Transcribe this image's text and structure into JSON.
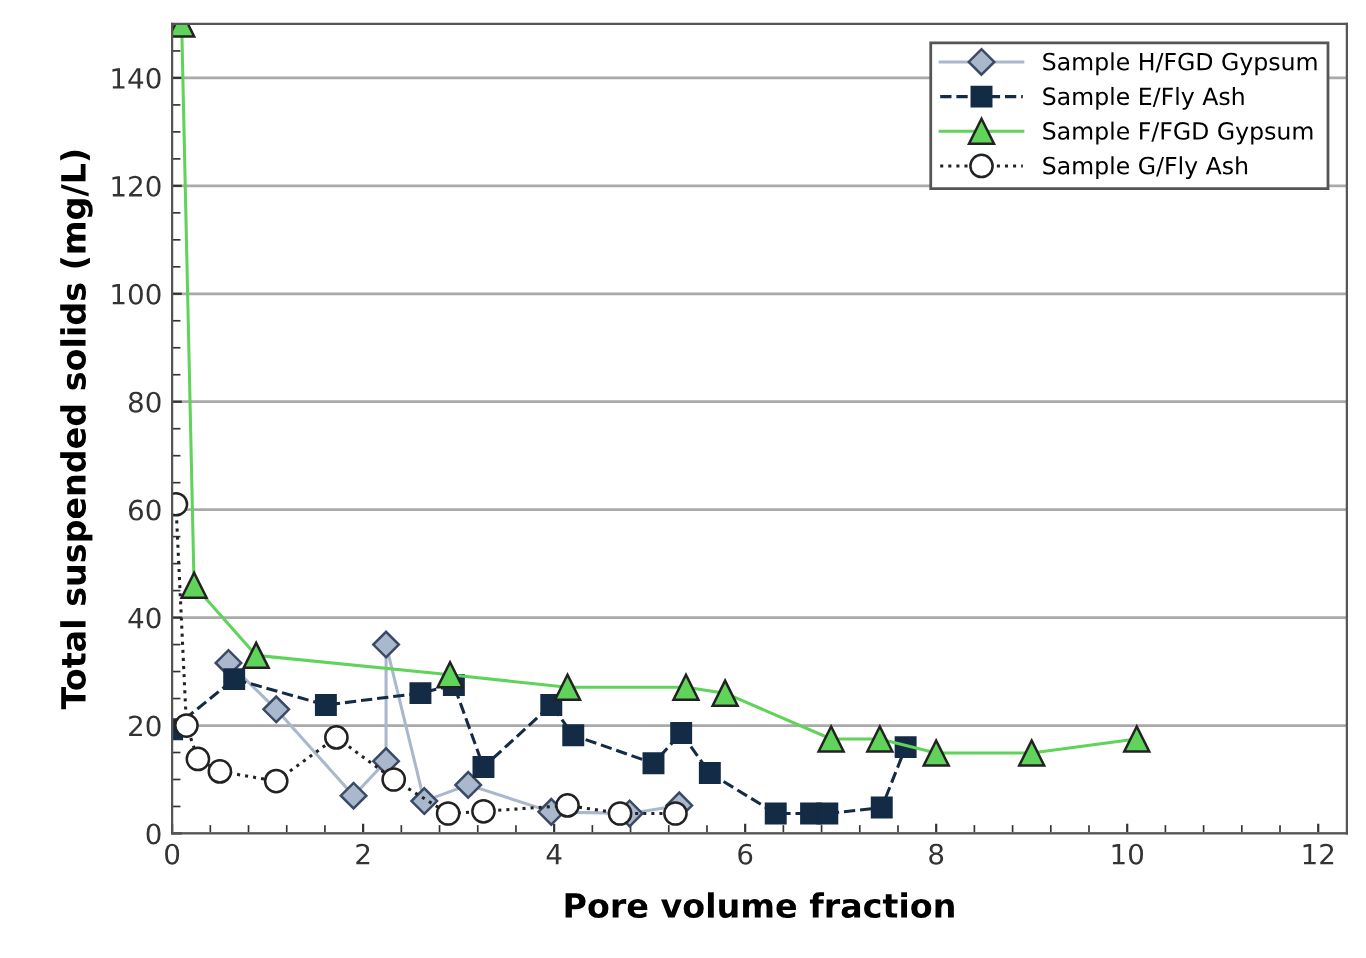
{
  "chart_data": {
    "type": "line",
    "xlabel": "Pore volume fraction",
    "ylabel": "Total suspended solids (mg/L)",
    "xlim": [
      0,
      12.3
    ],
    "xticks": [
      0,
      2,
      4,
      6,
      8,
      10,
      12
    ],
    "ylim": [
      0,
      150
    ],
    "yticks": [
      0,
      20,
      40,
      60,
      80,
      100,
      120,
      140
    ],
    "grid": "y",
    "legend": "top right",
    "series": [
      {
        "name": "Sample H/FGD Gypsum",
        "color": "#a9b8cc",
        "marker": "diamond",
        "line_style": "solid",
        "x": [
          0.59,
          1.09,
          1.9,
          2.24,
          2.24,
          2.64,
          3.1,
          3.97,
          4.79,
          5.31
        ],
        "values": [
          31.6,
          23,
          7,
          13.4,
          35,
          6,
          9,
          4,
          3.7,
          5.2
        ]
      },
      {
        "name": "Sample E/Fly Ash",
        "color": "#142b45",
        "marker": "square",
        "line_style": "dashed",
        "x": [
          0,
          0.65,
          1.61,
          2.6,
          2.95,
          3.26,
          3.97,
          4.2,
          5.04,
          5.33,
          5.63,
          6.32,
          6.69,
          6.86,
          7.43,
          7.68
        ],
        "values": [
          19.3,
          28.6,
          23.8,
          26,
          27.5,
          12.3,
          23.8,
          18.2,
          13,
          18.6,
          11.2,
          3.7,
          3.7,
          3.7,
          4.8,
          16
        ]
      },
      {
        "name": "Sample F/FGD Gypsum",
        "color": "#5fd35a",
        "marker": "triangle",
        "line_style": "solid",
        "x": [
          0.1,
          0.23,
          0.88,
          2.91,
          4.14,
          5.38,
          5.79,
          6.9,
          7.41,
          8.0,
          9.0,
          10.1
        ],
        "values": [
          150,
          46,
          33,
          29.4,
          27.1,
          27.1,
          26,
          17.5,
          17.5,
          14.9,
          14.9,
          17.5
        ]
      },
      {
        "name": "Sample G/Fly Ash",
        "color": "#ffffff",
        "marker": "circle",
        "line_style": "dotted",
        "x": [
          0.04,
          0.15,
          0.27,
          0.5,
          1.09,
          1.72,
          2.32,
          2.89,
          3.26,
          4.14,
          4.69,
          5.27
        ],
        "values": [
          61,
          20,
          13.8,
          11.5,
          9.7,
          17.8,
          10,
          3.7,
          4.1,
          5.2,
          3.7,
          3.7
        ]
      }
    ]
  }
}
